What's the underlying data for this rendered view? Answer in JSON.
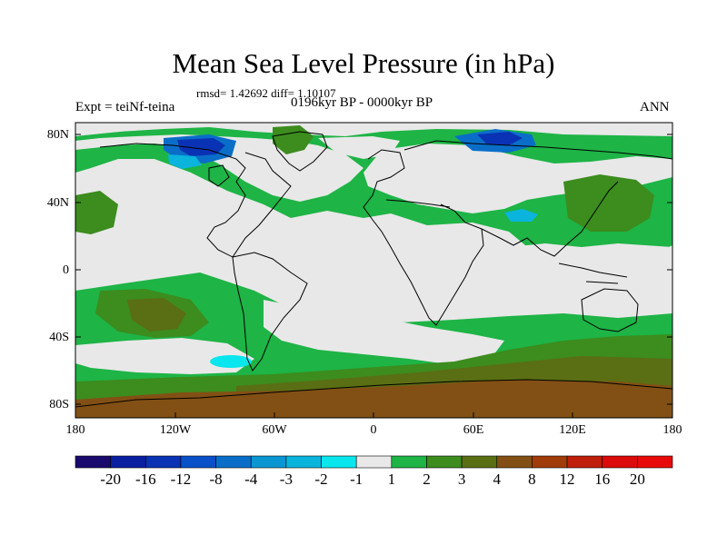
{
  "figure": {
    "title": "Mean Sea Level Pressure (in hPa)",
    "stats": "rmsd= 1.42692 diff= 1.10107",
    "period": "0196kyr BP - 0000kyr BP",
    "experiment": "Expt = teiNf-teina",
    "season": "ANN"
  },
  "axes": {
    "y_ticks": [
      "80N",
      "40N",
      "0",
      "40S",
      "80S"
    ],
    "x_ticks": [
      "180",
      "120W",
      "60W",
      "0",
      "60E",
      "120E",
      "180"
    ]
  },
  "colorbar": {
    "labels": [
      "-20",
      "-16",
      "-12",
      "-8",
      "-4",
      "-3",
      "-2",
      "-1",
      "1",
      "2",
      "3",
      "4",
      "8",
      "12",
      "16",
      "20"
    ],
    "colors": [
      "#1a0a6e",
      "#0a1ea0",
      "#0a32b4",
      "#0a50c8",
      "#0a6ec8",
      "#0a96d2",
      "#0ab4dc",
      "#0ae6ee",
      "#e8e8e8",
      "#1eb446",
      "#3c8c1e",
      "#5a6e14",
      "#825014",
      "#a03c0a",
      "#be1e0a",
      "#dc0a0a",
      "#e80a0a"
    ]
  },
  "colors": {
    "neutral": "#e8e8e8",
    "green_light": "#1eb446",
    "green_dark": "#3c8c1e",
    "olive": "#5a6e14",
    "brown": "#825014",
    "blue_dark": "#0a32b4",
    "blue": "#0a6ec8",
    "cyan": "#0ab4dc",
    "cyan_light": "#0ae6ee",
    "coastline": "#000000"
  }
}
